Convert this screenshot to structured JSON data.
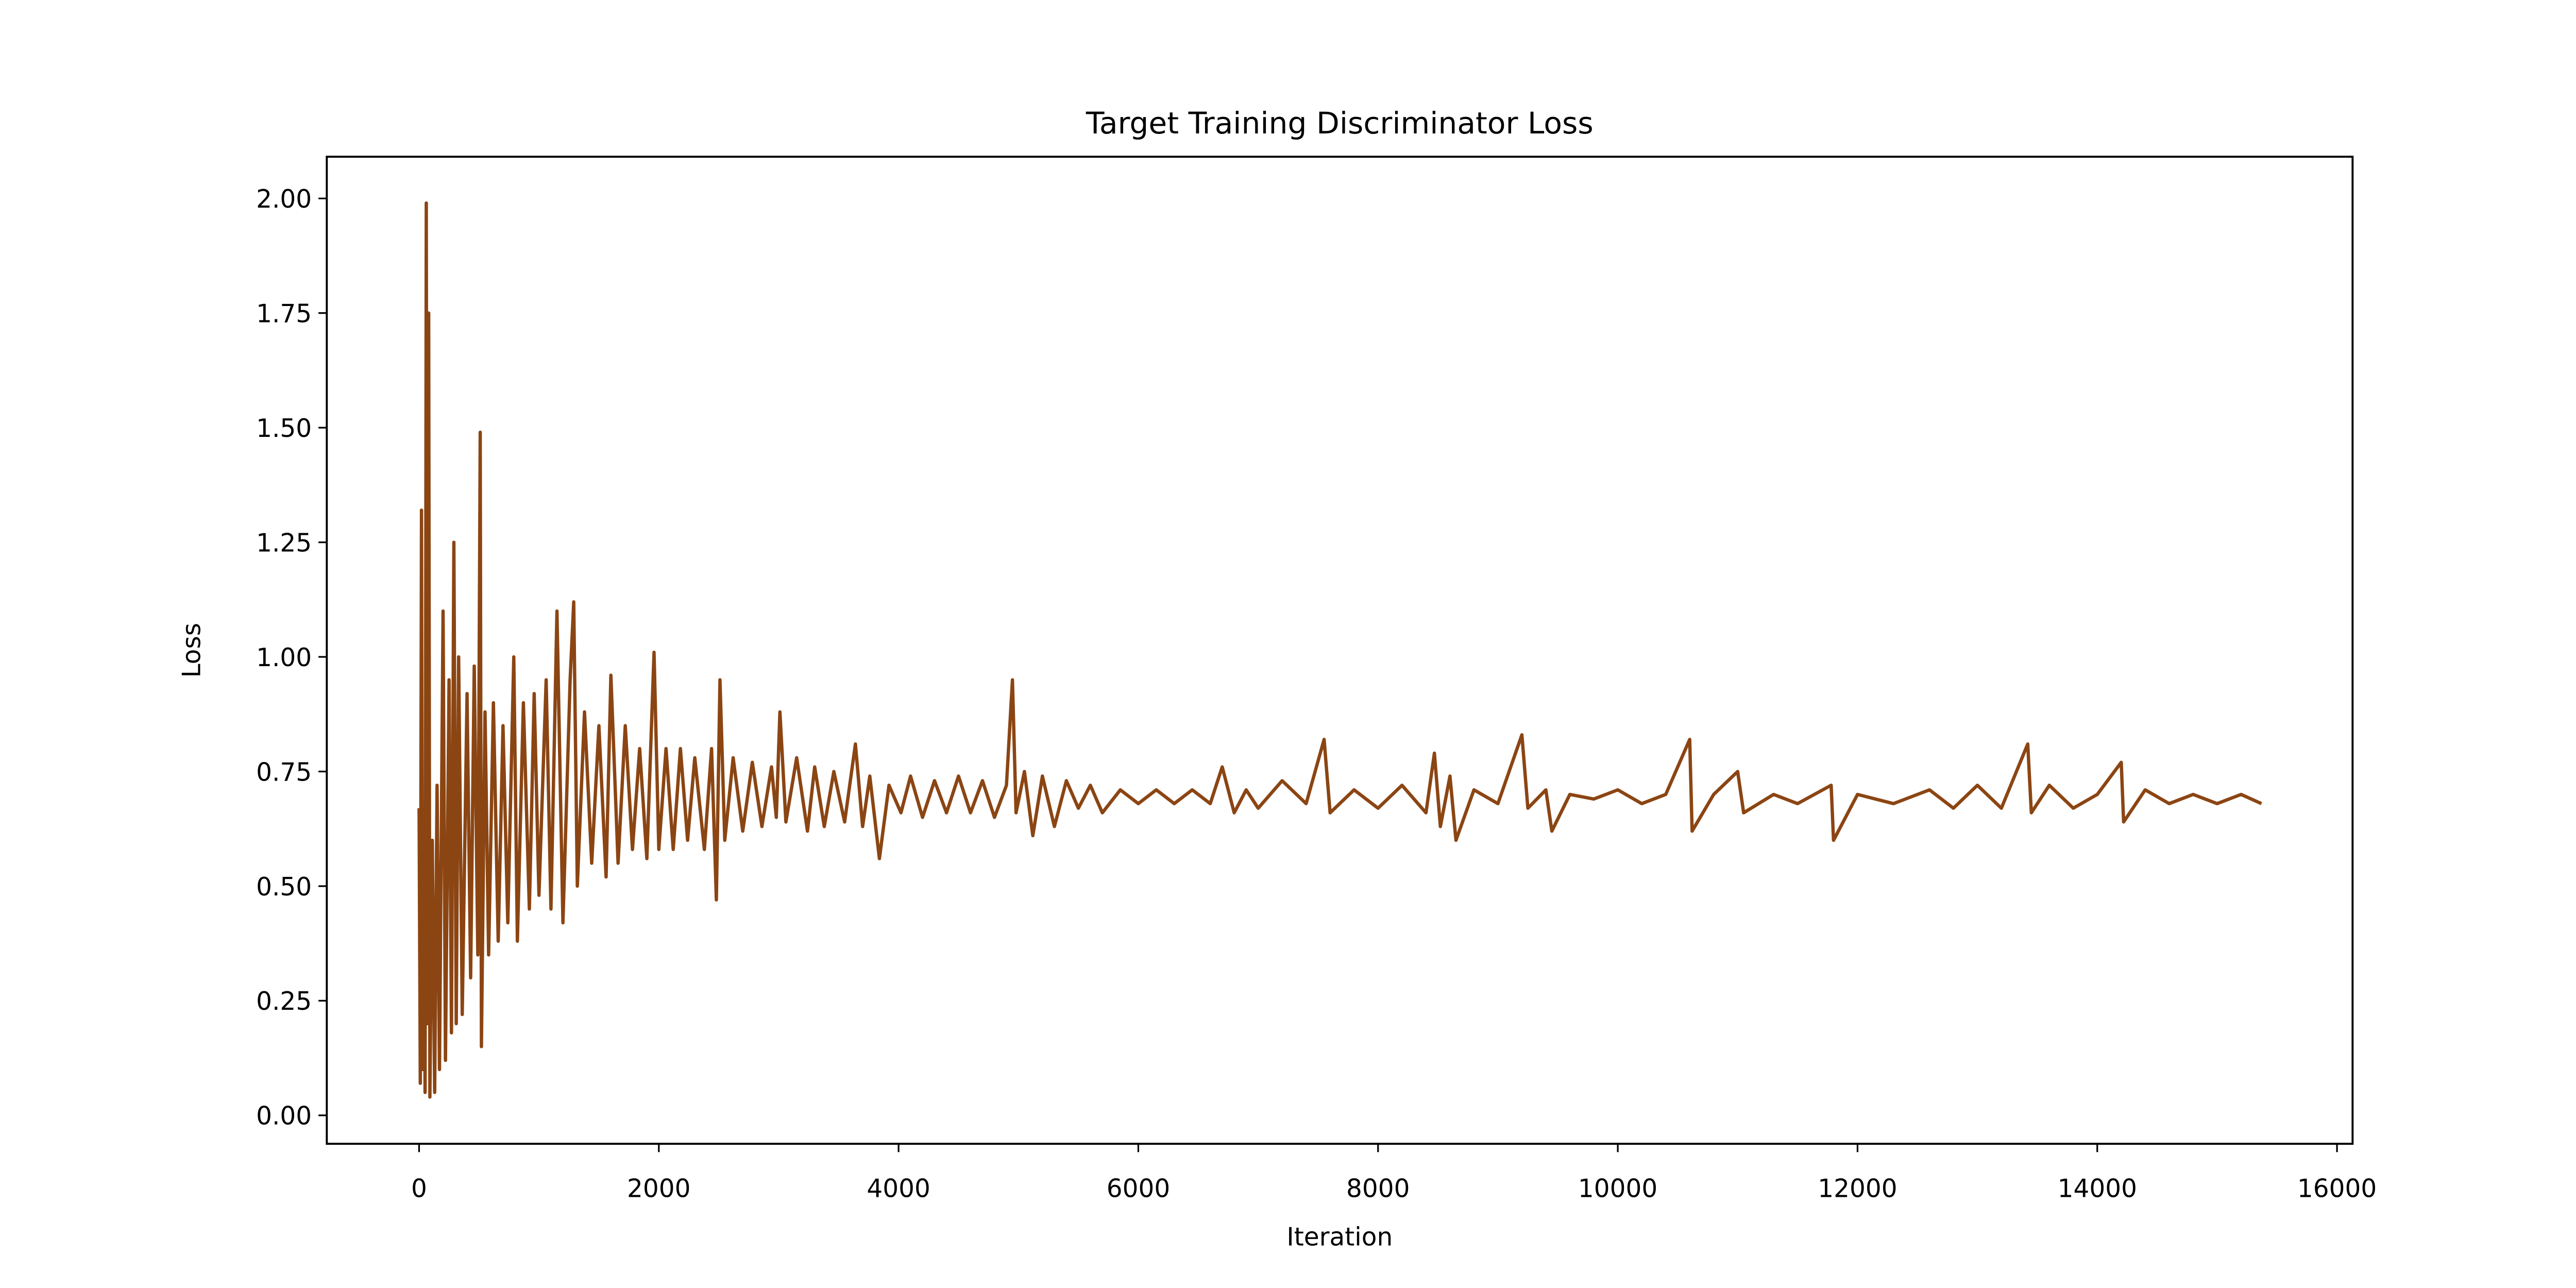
{
  "chart_data": {
    "type": "line",
    "title": "Target Training Discriminator Loss",
    "x_label": "Iteration",
    "y_label": "Loss",
    "xlim": [
      -770,
      16130
    ],
    "ylim": [
      -0.062,
      2.091
    ],
    "xticks": [
      0,
      2000,
      4000,
      6000,
      8000,
      10000,
      12000,
      14000,
      16000
    ],
    "yticks": [
      {
        "value": 0,
        "label": "0.00"
      },
      {
        "value": 0.25,
        "label": "0.25"
      },
      {
        "value": 0.5,
        "label": "0.50"
      },
      {
        "value": 0.75,
        "label": "0.75"
      },
      {
        "value": 1,
        "label": "1.00"
      },
      {
        "value": 1.25,
        "label": "1.25"
      },
      {
        "value": 1.5,
        "label": "1.50"
      },
      {
        "value": 1.75,
        "label": "1.75"
      },
      {
        "value": 2,
        "label": "2.00"
      }
    ],
    "grid": false,
    "series": [
      {
        "color": "#8b4513",
        "x": [
          0,
          10,
          20,
          30,
          40,
          50,
          60,
          70,
          80,
          90,
          110,
          130,
          150,
          170,
          200,
          220,
          250,
          270,
          290,
          310,
          330,
          360,
          400,
          430,
          460,
          490,
          510,
          520,
          550,
          580,
          620,
          660,
          700,
          740,
          790,
          820,
          870,
          920,
          960,
          1000,
          1060,
          1100,
          1150,
          1200,
          1260,
          1290,
          1320,
          1380,
          1440,
          1500,
          1560,
          1600,
          1660,
          1720,
          1780,
          1840,
          1900,
          1960,
          2000,
          2060,
          2120,
          2180,
          2240,
          2300,
          2380,
          2440,
          2480,
          2510,
          2550,
          2620,
          2700,
          2780,
          2860,
          2940,
          2980,
          3010,
          3060,
          3150,
          3240,
          3300,
          3380,
          3460,
          3550,
          3640,
          3700,
          3760,
          3840,
          3920,
          4020,
          4100,
          4200,
          4300,
          4400,
          4500,
          4600,
          4700,
          4800,
          4900,
          4950,
          4980,
          5050,
          5120,
          5200,
          5300,
          5400,
          5500,
          5600,
          5700,
          5850,
          6000,
          6150,
          6300,
          6450,
          6600,
          6700,
          6800,
          6900,
          7000,
          7200,
          7400,
          7550,
          7600,
          7800,
          8000,
          8200,
          8400,
          8470,
          8520,
          8600,
          8650,
          8800,
          9000,
          9200,
          9250,
          9400,
          9450,
          9600,
          9800,
          10000,
          10200,
          10400,
          10600,
          10620,
          10800,
          11000,
          11050,
          11300,
          11500,
          11780,
          11800,
          12000,
          12300,
          12600,
          12800,
          13000,
          13200,
          13420,
          13450,
          13600,
          13800,
          14000,
          14200,
          14220,
          14400,
          14600,
          14800,
          15000,
          15200,
          15370
        ],
        "values": [
          0.67,
          0.07,
          1.32,
          0.1,
          0.55,
          0.05,
          1.99,
          0.2,
          1.75,
          0.04,
          0.6,
          0.05,
          0.72,
          0.1,
          1.1,
          0.12,
          0.95,
          0.18,
          1.25,
          0.2,
          1.0,
          0.22,
          0.92,
          0.3,
          0.98,
          0.35,
          1.49,
          0.15,
          0.88,
          0.35,
          0.9,
          0.38,
          0.85,
          0.42,
          1.0,
          0.38,
          0.9,
          0.45,
          0.92,
          0.48,
          0.95,
          0.45,
          1.1,
          0.42,
          0.95,
          1.12,
          0.5,
          0.88,
          0.55,
          0.85,
          0.52,
          0.96,
          0.55,
          0.85,
          0.58,
          0.8,
          0.56,
          1.01,
          0.58,
          0.8,
          0.58,
          0.8,
          0.6,
          0.78,
          0.58,
          0.8,
          0.47,
          0.95,
          0.6,
          0.78,
          0.62,
          0.77,
          0.63,
          0.76,
          0.65,
          0.88,
          0.64,
          0.78,
          0.62,
          0.76,
          0.63,
          0.75,
          0.64,
          0.81,
          0.63,
          0.74,
          0.56,
          0.72,
          0.66,
          0.74,
          0.65,
          0.73,
          0.66,
          0.74,
          0.66,
          0.73,
          0.65,
          0.72,
          0.95,
          0.66,
          0.75,
          0.61,
          0.74,
          0.63,
          0.73,
          0.67,
          0.72,
          0.66,
          0.71,
          0.68,
          0.71,
          0.68,
          0.71,
          0.68,
          0.76,
          0.66,
          0.71,
          0.67,
          0.73,
          0.68,
          0.82,
          0.66,
          0.71,
          0.67,
          0.72,
          0.66,
          0.79,
          0.63,
          0.74,
          0.6,
          0.71,
          0.68,
          0.83,
          0.67,
          0.71,
          0.62,
          0.7,
          0.69,
          0.71,
          0.68,
          0.7,
          0.82,
          0.62,
          0.7,
          0.75,
          0.66,
          0.7,
          0.68,
          0.72,
          0.6,
          0.7,
          0.68,
          0.71,
          0.67,
          0.72,
          0.67,
          0.81,
          0.66,
          0.72,
          0.67,
          0.7,
          0.77,
          0.64,
          0.71,
          0.68,
          0.7,
          0.68,
          0.7,
          0.68
        ]
      }
    ]
  }
}
